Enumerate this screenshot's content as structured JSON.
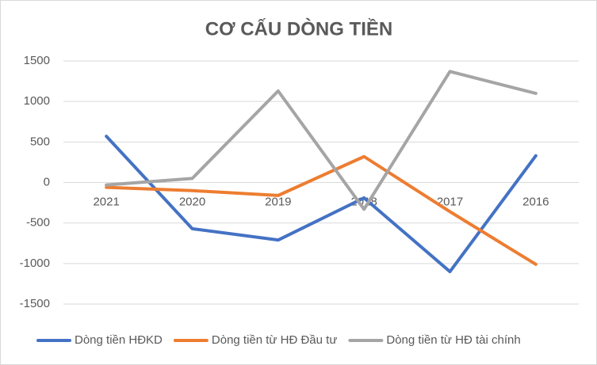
{
  "chart_data": {
    "type": "line",
    "title": "CƠ CẤU DÒNG TIỀN",
    "categories": [
      "2021",
      "2020",
      "2019",
      "2018",
      "2017",
      "2016"
    ],
    "series": [
      {
        "name": "Dòng tiền HĐKD",
        "color": "#4472c4",
        "values": [
          570,
          -570,
          -710,
          -190,
          -1100,
          330
        ]
      },
      {
        "name": "Dòng tiền từ HĐ Đầu tư",
        "color": "#ed7d31",
        "values": [
          -60,
          -100,
          -160,
          320,
          -360,
          -1010
        ]
      },
      {
        "name": "Dòng tiền từ HĐ tài chính",
        "color": "#a5a5a5",
        "values": [
          -30,
          50,
          1130,
          -330,
          1370,
          1100
        ]
      }
    ],
    "ylim": [
      -1500,
      1500
    ],
    "yticks": [
      -1500,
      -1000,
      -500,
      0,
      500,
      1000,
      1500
    ],
    "grid": true,
    "legend": "bottom"
  }
}
